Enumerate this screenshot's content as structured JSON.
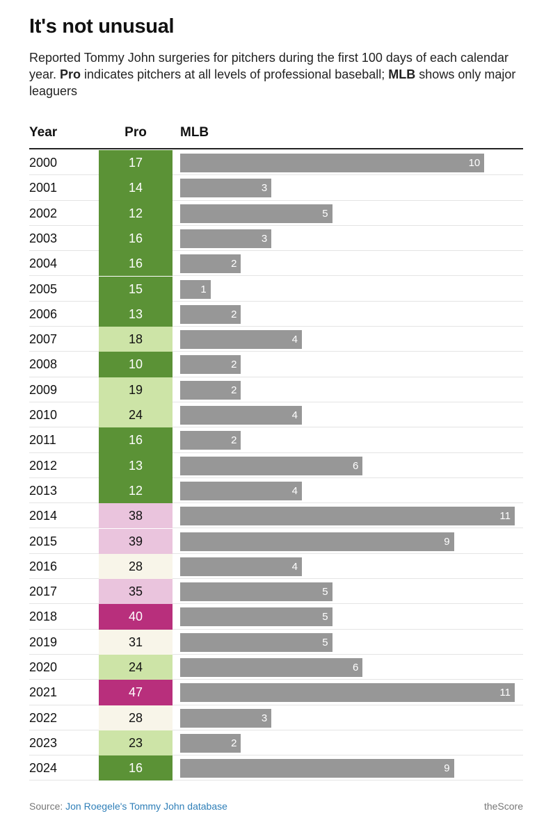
{
  "title": "It's not unusual",
  "subtitle": {
    "part1": "Reported Tommy John surgeries for pitchers during the first 100 days of each calendar year. ",
    "pro_bold": "Pro",
    "part2": " indicates pitchers at all levels of professional baseball; ",
    "mlb_bold": "MLB",
    "part3": " shows only major leaguers"
  },
  "columns": {
    "year": "Year",
    "pro": "Pro",
    "mlb": "MLB"
  },
  "colors": {
    "dark_green": "#5b9236",
    "light_green": "#cde4a7",
    "cream": "#f8f5e9",
    "light_pink": "#eac4dd",
    "magenta": "#b82f7c",
    "bar_gray": "#979797"
  },
  "chart_data": {
    "type": "table",
    "x": [
      "2000",
      "2001",
      "2002",
      "2003",
      "2004",
      "2005",
      "2006",
      "2007",
      "2008",
      "2009",
      "2010",
      "2011",
      "2012",
      "2013",
      "2014",
      "2015",
      "2016",
      "2017",
      "2018",
      "2019",
      "2020",
      "2021",
      "2022",
      "2023",
      "2024"
    ],
    "series": [
      {
        "name": "Pro",
        "values": [
          17,
          14,
          12,
          16,
          16,
          15,
          13,
          18,
          10,
          19,
          24,
          16,
          13,
          12,
          38,
          39,
          28,
          35,
          40,
          31,
          24,
          47,
          28,
          23,
          16
        ]
      },
      {
        "name": "MLB",
        "values": [
          10,
          3,
          5,
          3,
          2,
          1,
          2,
          4,
          2,
          2,
          4,
          2,
          6,
          4,
          11,
          9,
          4,
          5,
          5,
          5,
          6,
          11,
          3,
          2,
          9
        ]
      }
    ],
    "mlb_max": 11,
    "pro_color_scale": [
      {
        "max": 17,
        "color": "#5b9236"
      },
      {
        "max": 24,
        "color": "#cde4a7"
      },
      {
        "max": 31,
        "color": "#f8f5e9"
      },
      {
        "max": 39,
        "color": "#eac4dd"
      },
      {
        "max": 100,
        "color": "#b82f7c"
      }
    ]
  },
  "footer": {
    "source_prefix": "Source: ",
    "source_link": "Jon Roegele's Tommy John database",
    "brand": "theScore"
  }
}
